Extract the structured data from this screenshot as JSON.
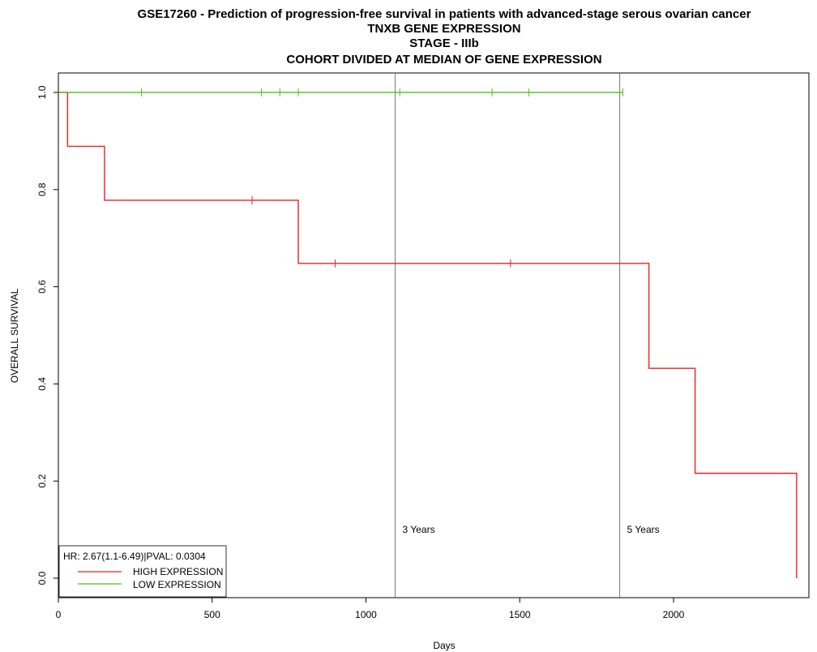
{
  "chart_data": {
    "type": "line",
    "title_lines": [
      "GSE17260 - Prediction of progression-free survival in patients with advanced-stage serous ovarian cancer",
      "TNXB GENE EXPRESSION",
      "STAGE - IIIb",
      "COHORT DIVIDED AT MEDIAN OF GENE EXPRESSION"
    ],
    "xlabel": "Days",
    "ylabel": "OVERALL SURVIVAL",
    "xlim": [
      0,
      2440
    ],
    "ylim": [
      -0.04,
      1.04
    ],
    "x_ticks": [
      0,
      500,
      1000,
      1500,
      2000
    ],
    "y_ticks": [
      "0.0",
      "0.2",
      "0.4",
      "0.6",
      "0.8",
      "1.0"
    ],
    "grid": false,
    "reference_lines": [
      {
        "x": 1095,
        "label": "3 Years"
      },
      {
        "x": 1825,
        "label": "5 Years"
      }
    ],
    "legend": {
      "placement": "bottom-left",
      "stat_text": "HR: 2.67(1.1-6.49)|PVAL: 0.0304",
      "entries": [
        "HIGH EXPRESSION",
        "LOW EXPRESSION"
      ]
    },
    "series": [
      {
        "name": "HIGH EXPRESSION",
        "color": "#ee2222",
        "steps": [
          [
            0,
            1.0
          ],
          [
            30,
            0.889
          ],
          [
            150,
            0.778
          ],
          [
            780,
            0.648
          ],
          [
            1920,
            0.432
          ],
          [
            2070,
            0.216
          ],
          [
            2400,
            0.0
          ]
        ],
        "censor_x": [
          630,
          900,
          1470
        ],
        "end_x": 2400
      },
      {
        "name": "LOW EXPRESSION",
        "color": "#55bb22",
        "steps": [
          [
            0,
            1.0
          ]
        ],
        "censor_x": [
          270,
          660,
          720,
          780,
          1110,
          1410,
          1530,
          1835
        ],
        "end_x": 1835
      }
    ]
  }
}
